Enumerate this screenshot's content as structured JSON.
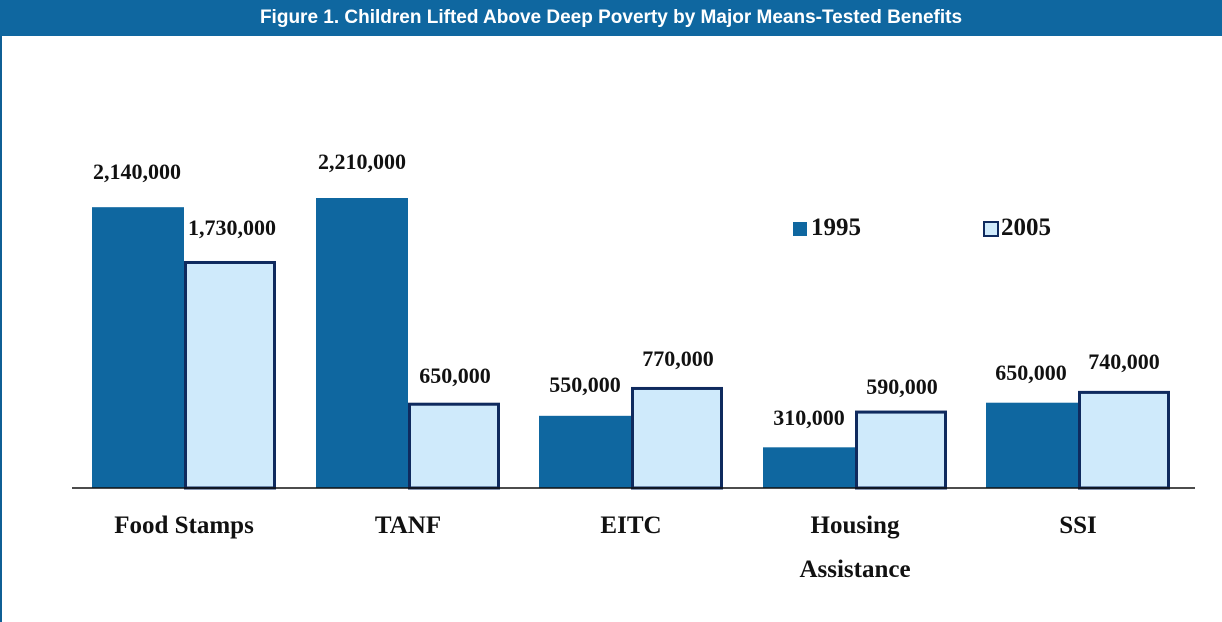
{
  "title": "Figure 1. Children Lifted Above Deep Poverty by Major Means-Tested Benefits",
  "colors": {
    "title_bar": "#0f67a0",
    "series_1995_fill": "#0f67a0",
    "series_2005_fill": "#cfeafb",
    "series_2005_stroke": "#0f2a5e",
    "axis": "#111111"
  },
  "chart_data": {
    "type": "bar",
    "title": "Figure 1. Children Lifted Above Deep Poverty by Major Means-Tested Benefits",
    "xlabel": "",
    "ylabel": "",
    "ylim": [
      0,
      2500000
    ],
    "grid": false,
    "legend_position": "upper-right",
    "categories": [
      [
        "Food Stamps"
      ],
      [
        "TANF"
      ],
      [
        "EITC"
      ],
      [
        "Housing",
        "Assistance"
      ],
      [
        "SSI"
      ]
    ],
    "series": [
      {
        "name": "1995",
        "values": [
          2140000,
          2210000,
          550000,
          310000,
          650000
        ],
        "labels": [
          "2,140,000",
          "2,210,000",
          "550,000",
          "310,000",
          "650,000"
        ]
      },
      {
        "name": "2005",
        "values": [
          1730000,
          650000,
          770000,
          590000,
          740000
        ],
        "labels": [
          "1,730,000",
          "650,000",
          "770,000",
          "590,000",
          "740,000"
        ]
      }
    ]
  }
}
